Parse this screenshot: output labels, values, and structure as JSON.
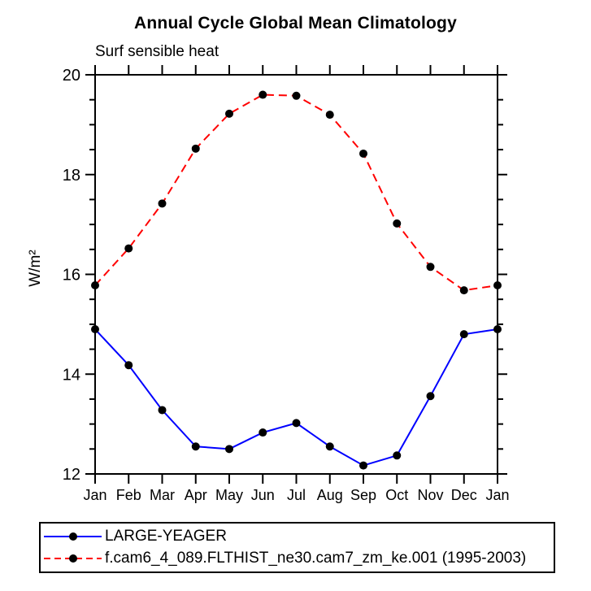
{
  "chart_data": {
    "type": "line",
    "title": "Annual Cycle Global Mean Climatology",
    "subtitle": "Surf sensible heat",
    "ylabel": "W/m²",
    "xlabel": "",
    "ylim": [
      12,
      20
    ],
    "ytick_major": 2,
    "ytick_minor": 0.5,
    "grid": false,
    "legend_position": "bottom-left",
    "categories": [
      "Jan",
      "Feb",
      "Mar",
      "Apr",
      "May",
      "Jun",
      "Jul",
      "Aug",
      "Sep",
      "Oct",
      "Nov",
      "Dec",
      "Jan"
    ],
    "series": [
      {
        "name": "LARGE-YEAGER",
        "color": "#0000ff",
        "line_style": "solid",
        "marker": "filled-circle",
        "marker_color": "#000000",
        "values": [
          14.9,
          14.18,
          13.28,
          12.55,
          12.5,
          12.83,
          13.02,
          12.55,
          12.17,
          12.37,
          13.56,
          14.8,
          14.9
        ]
      },
      {
        "name": "f.cam6_4_089.FLTHIST_ne30.cam7_zm_ke.001 (1995-2003)",
        "color": "#ff0000",
        "line_style": "dashed",
        "marker": "filled-circle",
        "marker_color": "#000000",
        "values": [
          15.78,
          16.52,
          17.42,
          18.52,
          19.22,
          19.6,
          19.58,
          19.2,
          18.42,
          17.02,
          16.15,
          15.68,
          15.78
        ]
      }
    ],
    "axis_color": "#000000",
    "background_color": "#ffffff"
  }
}
